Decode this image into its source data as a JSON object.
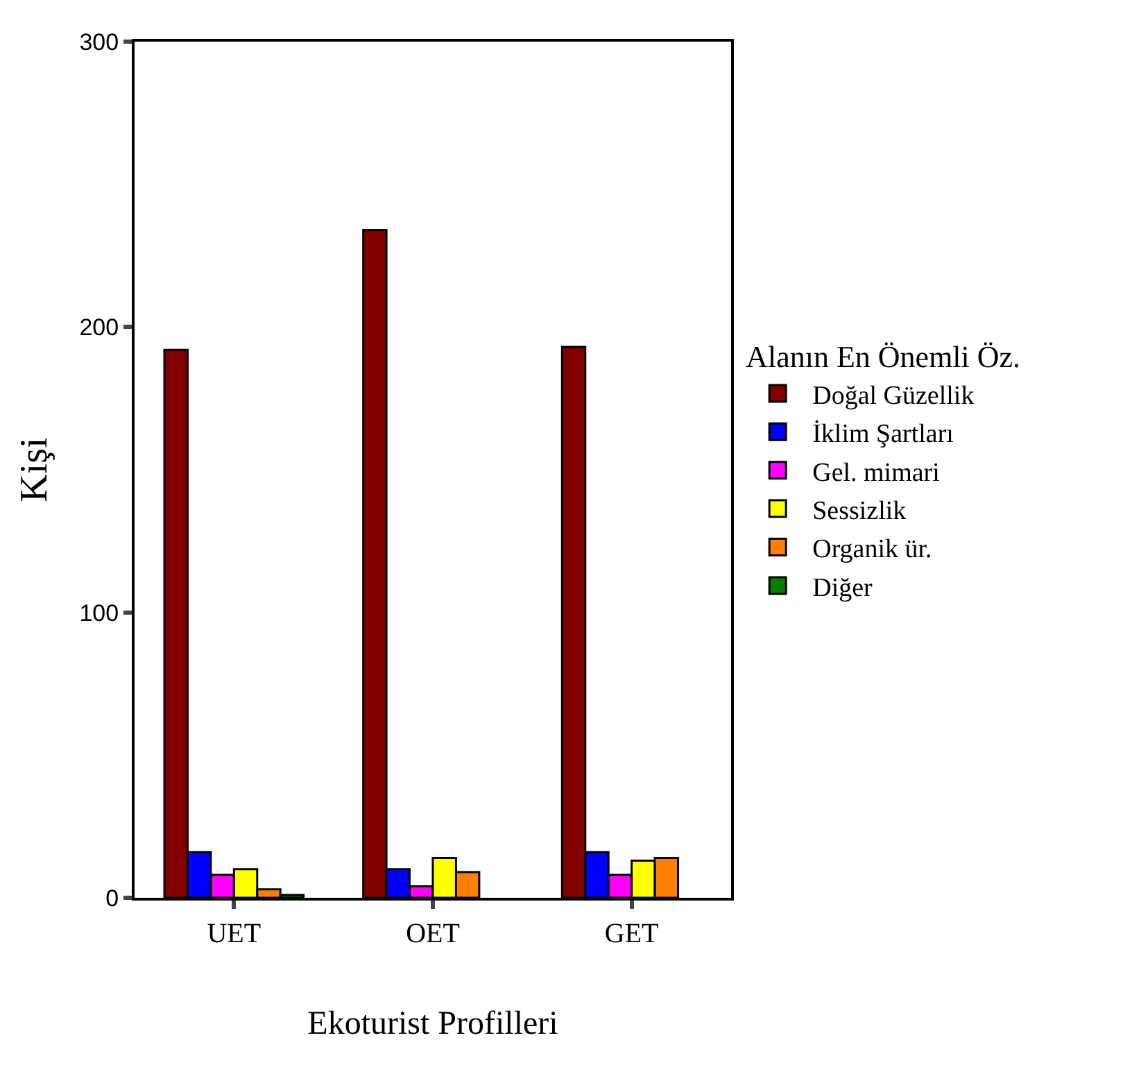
{
  "chart_data": {
    "type": "bar",
    "xlabel": "Ekoturist Profilleri",
    "ylabel": "Kişi",
    "legend_title": "Alanın En Önemli Öz.",
    "categories": [
      "UET",
      "OET",
      "GET"
    ],
    "ylim": [
      0,
      300
    ],
    "yticks": [
      0,
      100,
      200,
      300
    ],
    "legend": "right",
    "series": [
      {
        "name": "Doğal Güzellik",
        "color": "#800000",
        "values": [
          192,
          234,
          193
        ]
      },
      {
        "name": "İklim Şartları",
        "color": "#0000ff",
        "values": [
          16,
          10,
          16
        ]
      },
      {
        "name": "Gel. mimari",
        "color": "#ff00ff",
        "values": [
          8,
          4,
          8
        ]
      },
      {
        "name": "Sessizlik",
        "color": "#ffff00",
        "values": [
          10,
          14,
          13
        ]
      },
      {
        "name": "Organik ür.",
        "color": "#ff8000",
        "values": [
          3,
          9,
          14
        ]
      },
      {
        "name": "Diğer",
        "color": "#008000",
        "values": [
          1,
          0,
          0
        ]
      }
    ]
  }
}
